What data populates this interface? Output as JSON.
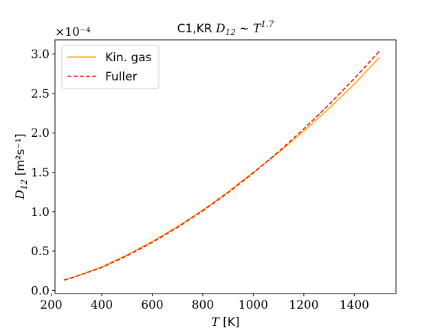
{
  "chart_data": {
    "type": "line",
    "title_prefix": "C1,KR ",
    "title_math": "D",
    "title_math_sub": "12",
    "title_math_mid": " ~ T",
    "title_math_sup": "1.7",
    "xlabel_var": "T",
    "xlabel_unit": " [K]",
    "ylabel_var": "D",
    "ylabel_sub": "12",
    "ylabel_unit": " [m²s⁻¹]",
    "y_offset_text": "×10⁻⁴",
    "xlim": [
      215,
      1565
    ],
    "ylim": [
      -0.04,
      3.18
    ],
    "xticks": [
      200,
      400,
      600,
      800,
      1000,
      1200,
      1400
    ],
    "xtick_labels": [
      "200",
      "400",
      "600",
      "800",
      "1000",
      "1200",
      "1400"
    ],
    "yticks": [
      0.0,
      0.5,
      1.0,
      1.5,
      2.0,
      2.5,
      3.0
    ],
    "ytick_labels": [
      "0.0",
      "0.5",
      "1.0",
      "1.5",
      "2.0",
      "2.5",
      "3.0"
    ],
    "legend_position": "top-left",
    "grid": false,
    "series": [
      {
        "name": "Kin. gas",
        "color": "#ffa500",
        "dash": "solid",
        "x": [
          250,
          300,
          400,
          500,
          600,
          700,
          800,
          900,
          1000,
          1100,
          1200,
          1300,
          1400,
          1500
        ],
        "y": [
          0.13,
          0.18,
          0.3,
          0.45,
          0.62,
          0.81,
          1.02,
          1.25,
          1.5,
          1.75,
          2.02,
          2.31,
          2.62,
          2.96
        ]
      },
      {
        "name": "Fuller",
        "color": "#ff0000",
        "dash": "dashed",
        "x": [
          250,
          300,
          400,
          500,
          600,
          700,
          800,
          900,
          1000,
          1100,
          1200,
          1300,
          1400,
          1500
        ],
        "y": [
          0.13,
          0.18,
          0.29,
          0.44,
          0.61,
          0.8,
          1.01,
          1.24,
          1.49,
          1.76,
          2.05,
          2.36,
          2.69,
          3.04
        ]
      }
    ]
  }
}
